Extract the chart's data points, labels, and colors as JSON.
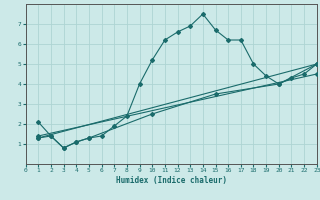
{
  "xlabel": "Humidex (Indice chaleur)",
  "bg_color": "#cce9e8",
  "line_color": "#1a6b6b",
  "grid_color": "#aed4d3",
  "xlim": [
    0,
    23
  ],
  "ylim": [
    0,
    8
  ],
  "xticks": [
    0,
    1,
    2,
    3,
    4,
    5,
    6,
    7,
    8,
    9,
    10,
    11,
    12,
    13,
    14,
    15,
    16,
    17,
    18,
    19,
    20,
    21,
    22,
    23
  ],
  "yticks": [
    1,
    2,
    3,
    4,
    5,
    6,
    7
  ],
  "curve1_x": [
    1,
    2,
    3,
    4,
    5,
    6,
    7,
    8,
    9,
    10,
    11,
    12,
    13,
    14,
    15,
    16,
    17,
    18,
    19,
    20,
    21,
    22,
    23
  ],
  "curve1_y": [
    1.3,
    1.4,
    0.8,
    1.1,
    1.3,
    1.4,
    1.9,
    2.4,
    4.0,
    5.2,
    6.2,
    6.6,
    6.9,
    7.5,
    6.7,
    6.2,
    6.2,
    5.0,
    4.4,
    4.0,
    4.3,
    4.5,
    5.0
  ],
  "curve2_x": [
    1,
    2,
    3,
    4,
    5,
    10,
    15,
    20,
    23
  ],
  "curve2_y": [
    2.1,
    1.4,
    0.8,
    1.1,
    1.3,
    2.5,
    3.5,
    4.0,
    5.0
  ],
  "curve3_x": [
    1,
    23
  ],
  "curve3_y": [
    1.3,
    5.0
  ],
  "curve4_x": [
    1,
    23
  ],
  "curve4_y": [
    1.4,
    4.5
  ]
}
